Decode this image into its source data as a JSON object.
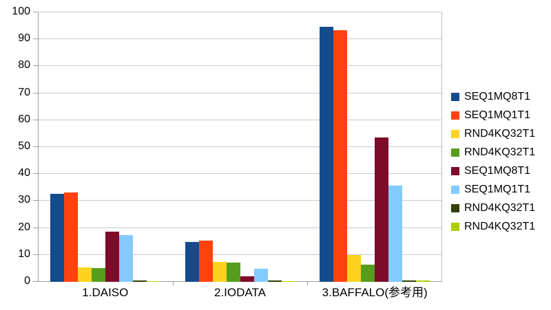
{
  "chart_data": {
    "type": "bar",
    "title": "",
    "categories": [
      "1.DAISO",
      "2.IODATA",
      "3.BAFFALO(参考用)"
    ],
    "series": [
      {
        "name": "SEQ1MQ8T1",
        "color": "#134B8D",
        "values": [
          32.6,
          14.8,
          94.6
        ]
      },
      {
        "name": "SEQ1MQ1T1",
        "color": "#FF420E",
        "values": [
          33.2,
          15.3,
          93.4
        ]
      },
      {
        "name": "RND4KQ32T1",
        "color": "#FFD320",
        "values": [
          5.4,
          7.3,
          10.0
        ]
      },
      {
        "name": "RND4KQ32T1",
        "color": "#579D1C",
        "values": [
          5.2,
          7.2,
          6.3
        ]
      },
      {
        "name": "SEQ1MQ8T1",
        "color": "#7E0B29",
        "values": [
          18.6,
          2.1,
          53.7
        ]
      },
      {
        "name": "SEQ1MQ1T1",
        "color": "#83CAFF",
        "values": [
          17.3,
          4.9,
          35.6
        ]
      },
      {
        "name": "RND4KQ32T1",
        "color": "#314004",
        "values": [
          0.4,
          0.4,
          0.4
        ]
      },
      {
        "name": "RND4KQ32T1",
        "color": "#AECF00",
        "values": [
          0.2,
          0.3,
          0.5
        ]
      }
    ],
    "ylabel": "",
    "xlabel": "",
    "ylim": [
      0,
      100
    ],
    "ytick_step": 10,
    "grid": true,
    "legend_position": "right"
  },
  "layout_colors": {
    "gridline": "#c9c9c9",
    "axis": "#9b9b9b",
    "background": "#ffffff",
    "text": "#000000"
  }
}
